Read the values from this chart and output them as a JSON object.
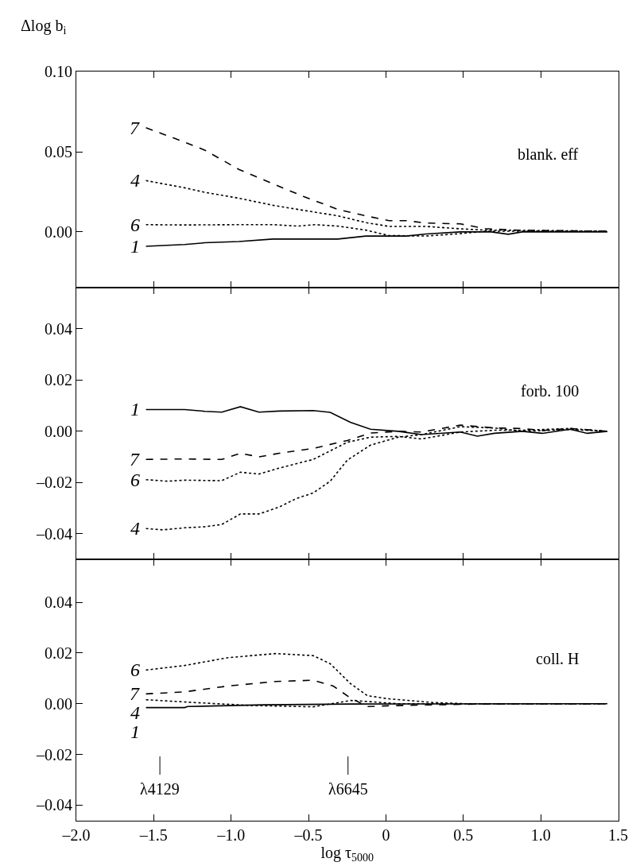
{
  "chart_data": [
    {
      "type": "line",
      "ylabel": "Δlog $_{}$b$_{i}$",
      "ylim": [
        -0.035,
        0.1
      ],
      "yticks": [
        {
          "value": 0,
          "label": "0.00"
        },
        {
          "value": 0.05,
          "label": "0.05"
        },
        {
          "value": 0.1,
          "label": "0.10"
        }
      ],
      "xlim": [
        -2.0,
        1.5
      ],
      "xticks": [
        -2.0,
        -1.5,
        -1.0,
        -0.5,
        0,
        0.5,
        1.0,
        1.5
      ],
      "tick_labels": "y",
      "legend": false,
      "annotations": [
        "blank. eff"
      ],
      "series": [
        {
          "name": "7",
          "color": "#000000",
          "line_style": "dashed",
          "x": [
            -1.55,
            -1.3,
            -1.17,
            -0.95,
            -0.73,
            -0.53,
            -0.31,
            -0.13,
            0.02,
            0.13,
            0.26,
            0.48,
            0.64,
            0.86,
            1.08,
            1.43
          ],
          "values": [
            0.065,
            0.056,
            0.051,
            0.039,
            0.03,
            0.022,
            0.014,
            0.01,
            0.007,
            0.007,
            0.0055,
            0.005,
            0.002,
            0.001,
            0.0008,
            0.0004
          ]
        },
        {
          "name": "4",
          "color": "#000000",
          "line_style": "dotted",
          "x": [
            -1.55,
            -1.3,
            -1.17,
            -0.95,
            -0.73,
            -0.53,
            -0.31,
            -0.13,
            0.02,
            0.26,
            0.48,
            0.64,
            1.43
          ],
          "values": [
            0.032,
            0.0275,
            0.0247,
            0.021,
            0.0166,
            0.0134,
            0.01,
            0.0058,
            0.0034,
            0.0034,
            0.0019,
            0.0011,
            0.0004
          ]
        },
        {
          "name": "6",
          "color": "#000000",
          "line_style": "dotted",
          "x": [
            -1.55,
            -1.3,
            -0.95,
            -0.73,
            -0.57,
            -0.46,
            -0.31,
            -0.13,
            0.02,
            0.26,
            0.48,
            0.64,
            1.43
          ],
          "values": [
            0.0045,
            0.0043,
            0.0045,
            0.0045,
            0.0036,
            0.0045,
            0.0036,
            0.0011,
            -0.0023,
            -0.0026,
            -0.0011,
            0.0004,
            0.0004
          ]
        },
        {
          "name": "1",
          "color": "#000000",
          "line_style": "solid",
          "x": [
            -1.55,
            -1.3,
            -1.17,
            -0.95,
            -0.73,
            -0.31,
            -0.13,
            0.02,
            0.13,
            0.26,
            0.48,
            0.68,
            0.79,
            0.88,
            1.43
          ],
          "values": [
            -0.009,
            -0.0079,
            -0.0068,
            -0.006,
            -0.0045,
            -0.0045,
            -0.0026,
            -0.0026,
            -0.0026,
            -0.0013,
            0,
            0,
            -0.0015,
            0,
            0
          ]
        }
      ]
    },
    {
      "type": "line",
      "ylim": [
        -0.05,
        0.056
      ],
      "yticks": [
        {
          "value": -0.04,
          "label": "–0.04"
        },
        {
          "value": -0.02,
          "label": "–0.02"
        },
        {
          "value": 0,
          "label": "0.00"
        },
        {
          "value": 0.02,
          "label": "0.02"
        },
        {
          "value": 0.04,
          "label": "0.04"
        }
      ],
      "xlim": [
        -2.0,
        1.5
      ],
      "xticks": [
        -2.0,
        -1.5,
        -1.0,
        -0.5,
        0,
        0.5,
        1.0,
        1.5
      ],
      "tick_labels": "y",
      "legend": false,
      "annotations": [
        "forb. 100"
      ],
      "series": [
        {
          "name": "1",
          "color": "#000000",
          "line_style": "solid",
          "x": [
            -1.55,
            -1.3,
            -1.17,
            -1.06,
            -0.94,
            -0.82,
            -0.69,
            -0.47,
            -0.36,
            -0.23,
            -0.1,
            0.08,
            0.23,
            0.48,
            0.59,
            0.7,
            0.88,
            1.01,
            1.19,
            1.3,
            1.43
          ],
          "values": [
            0.0085,
            0.0085,
            0.0078,
            0.0075,
            0.0096,
            0.0075,
            0.0079,
            0.0081,
            0.0074,
            0.0035,
            0.0008,
            0,
            -0.0013,
            -0.0003,
            -0.0019,
            -0.0008,
            0,
            -0.0008,
            0.0008,
            -0.0008,
            0
          ]
        },
        {
          "name": "7",
          "color": "#000000",
          "line_style": "dashed",
          "x": [
            -1.55,
            -1.3,
            -1.06,
            -0.94,
            -0.82,
            -0.69,
            -0.47,
            -0.25,
            -0.1,
            0.08,
            0.23,
            0.48,
            0.7,
            0.88,
            1.01,
            1.19,
            1.43
          ],
          "values": [
            -0.011,
            -0.0108,
            -0.011,
            -0.0086,
            -0.01,
            -0.0086,
            -0.0067,
            -0.0036,
            -0.0007,
            0,
            -0.0003,
            0.0024,
            0.0013,
            0.0011,
            0.0003,
            0.0011,
            0
          ]
        },
        {
          "name": "6",
          "color": "#000000",
          "line_style": "dotted",
          "x": [
            -1.55,
            -1.41,
            -1.3,
            -1.06,
            -0.94,
            -0.82,
            -0.69,
            -0.47,
            -0.25,
            -0.1,
            0.08,
            0.23,
            0.48,
            0.7,
            0.88,
            1.19,
            1.43
          ],
          "values": [
            -0.0189,
            -0.0195,
            -0.0191,
            -0.0193,
            -0.016,
            -0.0167,
            -0.0144,
            -0.011,
            -0.0043,
            -0.0023,
            -0.002,
            -0.003,
            -0.0003,
            0.0004,
            0.0004,
            0.0011,
            0
          ]
        },
        {
          "name": "4",
          "color": "#000000",
          "line_style": "dotted",
          "x": [
            -1.55,
            -1.44,
            -1.3,
            -1.17,
            -1.06,
            -0.94,
            -0.82,
            -0.69,
            -0.58,
            -0.47,
            -0.36,
            -0.25,
            -0.1,
            0.08,
            0.23,
            0.48,
            0.7,
            0.88,
            1.19,
            1.43
          ],
          "values": [
            -0.038,
            -0.0385,
            -0.0377,
            -0.0373,
            -0.0364,
            -0.0323,
            -0.0323,
            -0.0296,
            -0.0263,
            -0.0241,
            -0.0195,
            -0.0113,
            -0.0054,
            -0.0023,
            -0.0013,
            0.0018,
            0.0013,
            0,
            0.0007,
            0
          ]
        }
      ]
    },
    {
      "type": "line",
      "xlabel": "log τ$_{5000}$",
      "ylim": [
        -0.046,
        0.057
      ],
      "yticks": [
        {
          "value": -0.04,
          "label": "–0.04"
        },
        {
          "value": -0.02,
          "label": "–0.02"
        },
        {
          "value": 0,
          "label": "0.00"
        },
        {
          "value": 0.02,
          "label": "0.02"
        },
        {
          "value": 0.04,
          "label": "0.04"
        }
      ],
      "xlim": [
        -2.0,
        1.5
      ],
      "xticks": [
        {
          "value": -2.0,
          "label": "–2.0"
        },
        {
          "value": -1.5,
          "label": "–1.5"
        },
        {
          "value": -1.0,
          "label": "–1.0"
        },
        {
          "value": -0.5,
          "label": "–0.5"
        },
        {
          "value": 0,
          "label": "0"
        },
        {
          "value": 0.5,
          "label": "0.5"
        },
        {
          "value": 1.0,
          "label": "1.0"
        },
        {
          "value": 1.5,
          "label": "1.5"
        }
      ],
      "legend": false,
      "annotations": [
        "coll. H"
      ],
      "ref_lines": [
        {
          "axis": "x",
          "value": -1.46,
          "label": "λ4129"
        },
        {
          "axis": "x",
          "value": -0.245,
          "label": "λ6645"
        }
      ],
      "series": [
        {
          "name": "6",
          "color": "#000000",
          "line_style": "dotted",
          "x": [
            -1.55,
            -1.3,
            -1.02,
            -0.71,
            -0.47,
            -0.36,
            -0.23,
            -0.12,
            0.01,
            0.3,
            0.52,
            1.43
          ],
          "values": [
            0.0133,
            0.0151,
            0.0182,
            0.0198,
            0.019,
            0.0158,
            0.008,
            0.0032,
            0.002,
            0.0005,
            0,
            0
          ]
        },
        {
          "name": "7",
          "color": "#000000",
          "line_style": "dashed",
          "x": [
            -1.55,
            -1.3,
            -1.02,
            -0.71,
            -0.47,
            -0.34,
            -0.23,
            -0.12,
            0.01,
            0.3,
            0.63,
            1.43
          ],
          "values": [
            0.0039,
            0.0047,
            0.007,
            0.0088,
            0.0093,
            0.007,
            0.0023,
            -0.0011,
            -0.0008,
            -0.0004,
            -0.0001,
            0
          ]
        },
        {
          "name": "4",
          "color": "#000000",
          "line_style": "dotted",
          "x": [
            -1.55,
            -1.24,
            -0.86,
            -0.47,
            -0.23,
            -0.12,
            0.08,
            1.43
          ],
          "values": [
            0.0016,
            0.0005,
            -0.0007,
            -0.0012,
            0.0013,
            0.0009,
            0,
            0
          ]
        },
        {
          "name": "1",
          "color": "#000000",
          "line_style": "solid",
          "x": [
            -1.55,
            -1.3,
            -1.28,
            -0.79,
            -0.23,
            1.43
          ],
          "values": [
            -0.0015,
            -0.0015,
            -0.0011,
            -0.0004,
            -0.0001,
            0
          ]
        }
      ]
    }
  ]
}
